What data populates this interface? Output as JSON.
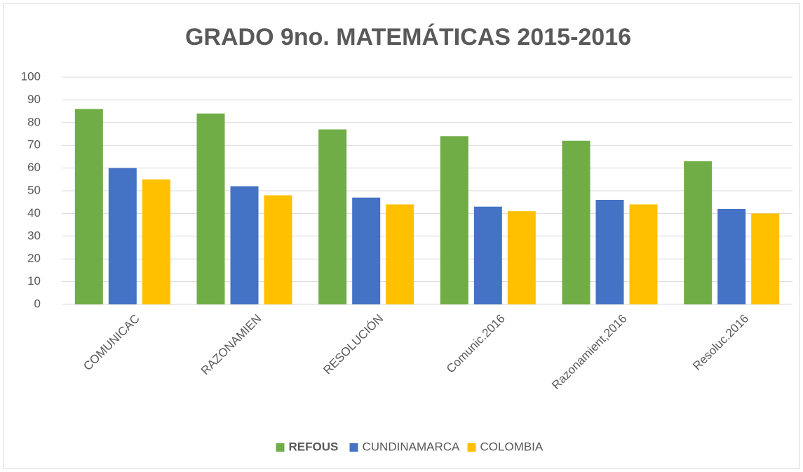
{
  "chart_data": {
    "type": "bar",
    "title": "GRADO 9no. MATEMÁTICAS 2015-2016",
    "categories": [
      "COMUNICAC",
      "RAZONAMIEN",
      "RESOLUCIÓN",
      "Comunic.2016",
      "Razonamient,2016",
      "Resoluc.2016"
    ],
    "series": [
      {
        "name": "REFOUS",
        "color": "#70ad47",
        "values": [
          86,
          84,
          77,
          74,
          72,
          63
        ]
      },
      {
        "name": "CUNDINAMARCA",
        "color": "#4472c4",
        "values": [
          60,
          52,
          47,
          43,
          46,
          42
        ]
      },
      {
        "name": "COLOMBIA",
        "color": "#ffc000",
        "values": [
          55,
          48,
          44,
          41,
          44,
          40
        ]
      }
    ],
    "ylim": [
      0,
      100
    ],
    "yticks": [
      0,
      10,
      20,
      30,
      40,
      50,
      60,
      70,
      80,
      90,
      100
    ],
    "grid": true,
    "legend": "bottom"
  }
}
